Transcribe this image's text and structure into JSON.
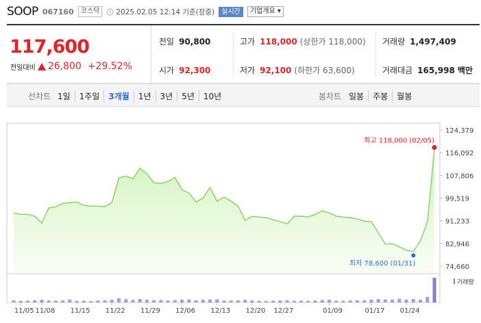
{
  "header": {
    "name": "SOOP",
    "code": "067160",
    "market": "코스닥",
    "time": "2025.02.05 12:14 기준(장중)",
    "realtime": "실시간",
    "company": "기업개요"
  },
  "quote": {
    "price": "117,600",
    "change_label": "전일대비",
    "change": "26,800",
    "rate": "+29.52%",
    "items": [
      {
        "label": "전일",
        "value": "90,800"
      },
      {
        "label": "고가",
        "value": "118,000",
        "note": "(상한가 118,000)"
      },
      {
        "label": "거래량",
        "value": "1,497,409"
      },
      {
        "label": "시가",
        "value": "92,300"
      },
      {
        "label": "저가",
        "value": "92,100",
        "note": "(하한가 63,600)"
      },
      {
        "label": "거래대금",
        "value": "165,998",
        "unit": "백만"
      }
    ]
  },
  "tabs": {
    "line_label": "선차트",
    "periods": [
      "1일",
      "1주일",
      "3개월",
      "1년",
      "3년",
      "5년",
      "10년"
    ],
    "selected_period": "3개월",
    "candle_label": "봉차트",
    "candles": [
      "일봉",
      "주봉",
      "월봉"
    ]
  },
  "chart_data": {
    "type": "line",
    "categories": [
      null,
      "11/05",
      null,
      null,
      "11/08",
      null,
      null,
      null,
      null,
      "11/15",
      null,
      null,
      null,
      null,
      "11/22",
      null,
      null,
      null,
      null,
      "11/29",
      null,
      null,
      null,
      null,
      "12/06",
      null,
      null,
      null,
      null,
      "12/13",
      null,
      null,
      null,
      null,
      "12/20",
      null,
      null,
      null,
      "12/27",
      null,
      null,
      null,
      null,
      null,
      null,
      "01/09",
      null,
      null,
      null,
      null,
      null,
      "01/17",
      null,
      null,
      null,
      null,
      "01/24",
      null,
      null,
      null,
      null
    ],
    "values": [
      94100,
      93600,
      93600,
      92900,
      90400,
      95900,
      96400,
      97600,
      97900,
      98100,
      96900,
      96600,
      96600,
      96400,
      97900,
      106900,
      107600,
      106600,
      110400,
      108400,
      105100,
      104900,
      105600,
      107100,
      102600,
      101400,
      98100,
      99600,
      103400,
      98400,
      99900,
      98400,
      96600,
      91400,
      92900,
      92600,
      92400,
      91600,
      90900,
      90100,
      92900,
      92900,
      92600,
      93600,
      94900,
      94100,
      92900,
      92600,
      92400,
      91900,
      91100,
      90900,
      86900,
      82700,
      82900,
      81700,
      80500,
      80000,
      83900,
      90800,
      117600
    ],
    "color": "#86cf5e",
    "ylim": [
      74660,
      124379
    ],
    "yticks": [
      {
        "value": 74660,
        "label": "74,660"
      },
      {
        "value": 82946,
        "label": "82,946"
      },
      {
        "value": 91233,
        "label": "91,233"
      },
      {
        "value": 99519,
        "label": "99,519"
      },
      {
        "value": 107806,
        "label": "107,806"
      },
      {
        "value": 116092,
        "label": "116,092"
      },
      {
        "value": 124379,
        "label": "124,379"
      }
    ],
    "high": {
      "text": "최고 118,000 (02/05)",
      "value": 118000,
      "color": "#e0242b"
    },
    "low": {
      "text": "최저 78,600 (01/31)",
      "value": 78600,
      "color": "#2a6fd6"
    },
    "volume": {
      "name": "거래량",
      "color": "#a99bd6",
      "last_color": "#8e7cc9",
      "values": [
        130000,
        100000,
        110000,
        140000,
        160000,
        120000,
        110000,
        120000,
        180000,
        100000,
        110000,
        90000,
        120000,
        130000,
        160000,
        260000,
        200000,
        150000,
        210000,
        160000,
        140000,
        150000,
        120000,
        140000,
        170000,
        180000,
        130000,
        160000,
        180000,
        190000,
        110000,
        120000,
        130000,
        160000,
        130000,
        100000,
        90000,
        110000,
        120000,
        140000,
        100000,
        110000,
        100000,
        120000,
        150000,
        160000,
        110000,
        100000,
        120000,
        130000,
        140000,
        170000,
        210000,
        190000,
        180000,
        230000,
        170000,
        210000,
        160000,
        330000,
        1497409
      ]
    }
  }
}
